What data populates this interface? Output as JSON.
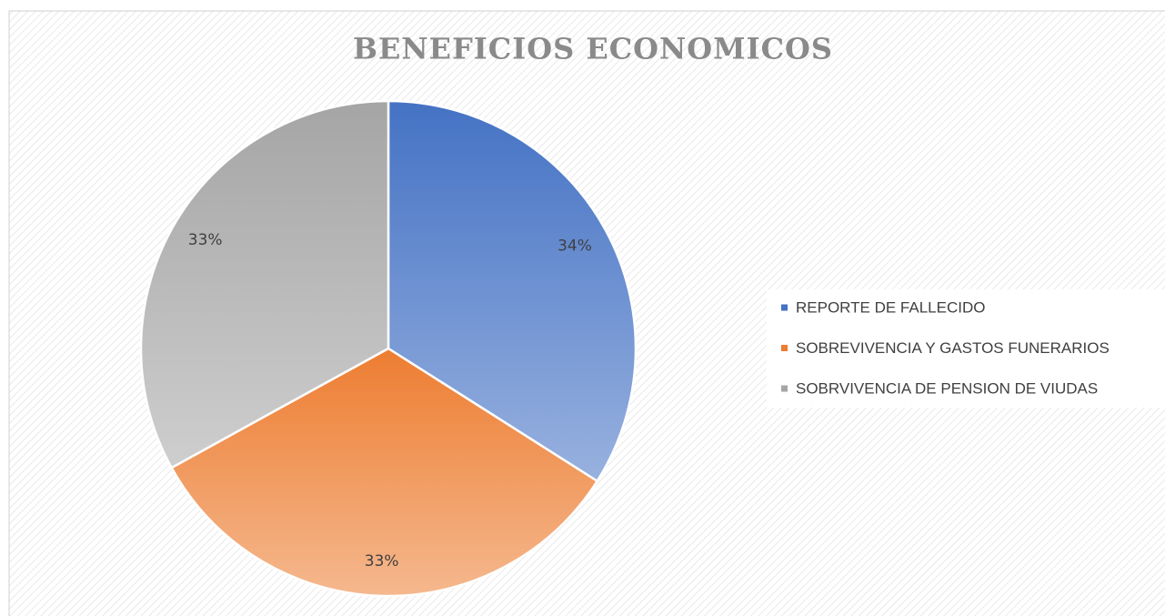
{
  "chart_data": {
    "type": "pie",
    "title": "BENEFICIOS ECONOMICOS",
    "categories": [
      "REPORTE DE FALLECIDO",
      "SOBREVIVENCIA Y GASTOS FUNERARIOS",
      "SOBRVIVENCIA DE PENSION DE VIUDAS"
    ],
    "values": [
      34,
      33,
      33
    ],
    "value_labels": [
      "34%",
      "33%",
      "33%"
    ],
    "colors": [
      "#4472c4",
      "#ed7d31",
      "#a5a5a5"
    ],
    "legend": "right"
  }
}
